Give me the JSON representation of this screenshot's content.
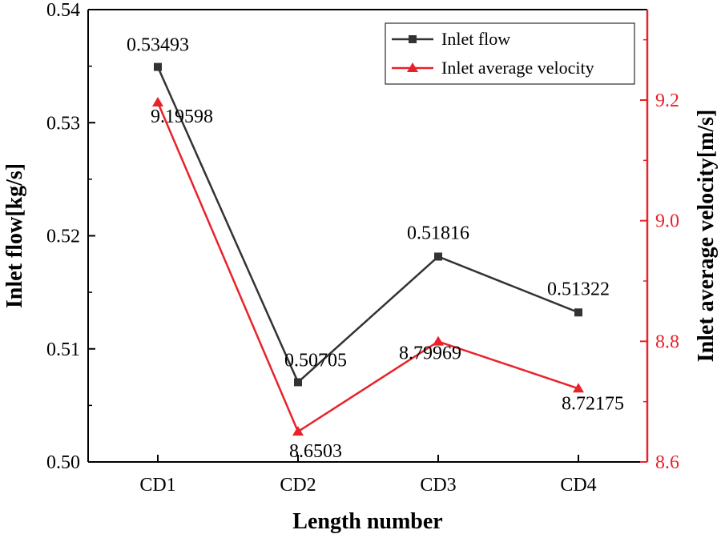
{
  "chart_data": {
    "type": "line",
    "categories": [
      "CD1",
      "CD2",
      "CD3",
      "CD4"
    ],
    "xlabel": "Length number",
    "series": [
      {
        "name": "Inlet flow",
        "axis": "left",
        "color": "#333333",
        "marker": "square",
        "values": [
          0.53493,
          0.50705,
          0.51816,
          0.51322
        ],
        "labels": [
          "0.53493",
          "0.50705",
          "0.51816",
          "0.51322"
        ]
      },
      {
        "name": "Inlet average velocity",
        "axis": "right",
        "color": "#e8222a",
        "marker": "triangle",
        "values": [
          9.19598,
          8.6503,
          8.79969,
          8.72175
        ],
        "labels": [
          "9.19598",
          "8.6503",
          "8.79969",
          "8.72175"
        ]
      }
    ],
    "y_left": {
      "label": "Inlet flow[kg/s]",
      "ylim": [
        0.5,
        0.54
      ],
      "ticks": [
        0.5,
        0.51,
        0.52,
        0.53,
        0.54
      ],
      "tick_labels": [
        "0.50",
        "0.51",
        "0.52",
        "0.53",
        "0.54"
      ],
      "color": "#000000"
    },
    "y_right": {
      "label": "Inlet average velocity[m/s]",
      "ylim": [
        8.6,
        9.35
      ],
      "ticks": [
        8.6,
        8.8,
        9.0,
        9.2
      ],
      "tick_labels": [
        "8.6",
        "8.8",
        "9.0",
        "9.2"
      ],
      "color": "#e8222a"
    },
    "legend": {
      "location": "top-right"
    },
    "grid": false
  }
}
